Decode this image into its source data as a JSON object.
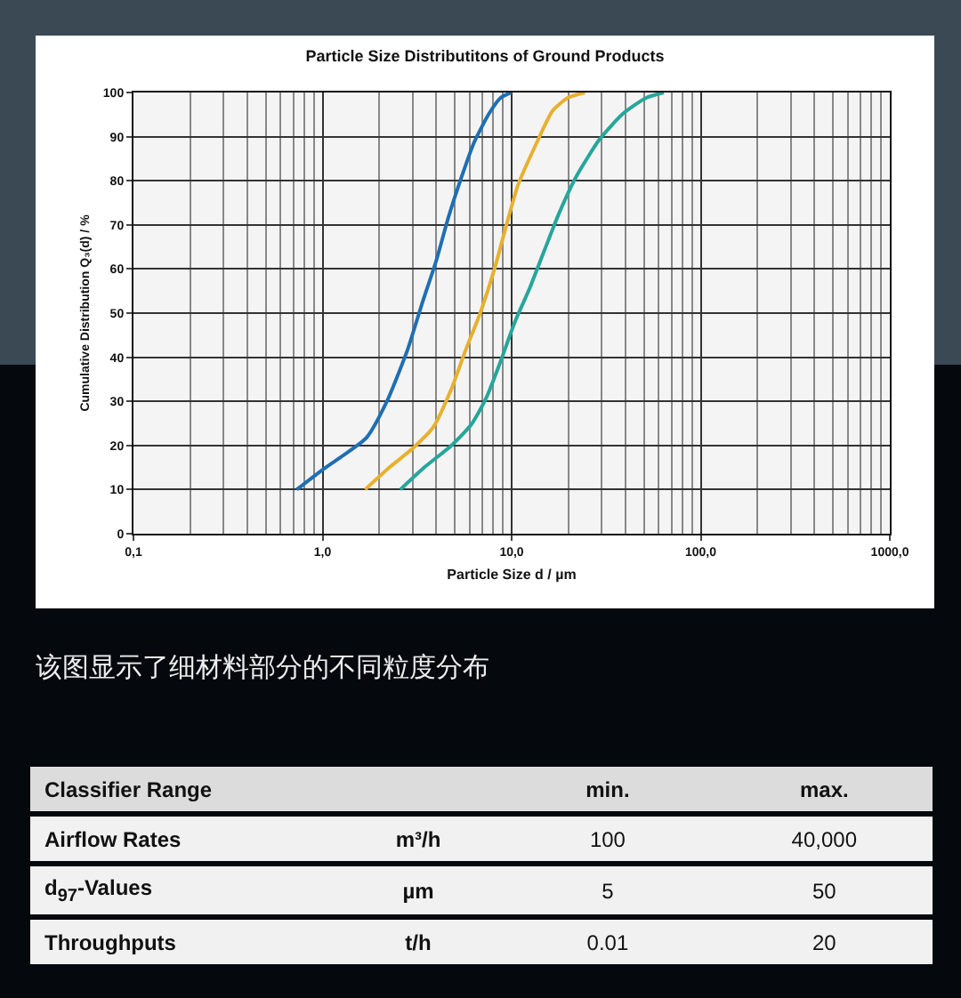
{
  "chart_data": [
    {
      "type": "line",
      "title": "Particle Size Distributitons of Ground Products",
      "xlabel": "Particle Size d / µm",
      "ylabel": "Cumulative Distribution Q₃(d) / %",
      "log": "x",
      "xlim": [
        0.1,
        1000
      ],
      "xticks": [
        {
          "value": 0.1,
          "label": "0,1"
        },
        {
          "value": 1,
          "label": "1,0"
        },
        {
          "value": 10,
          "label": "10,0"
        },
        {
          "value": 100,
          "label": "100,0"
        },
        {
          "value": 1000,
          "label": "1000,0"
        }
      ],
      "ylim": [
        0,
        100
      ],
      "yticks": [
        0,
        10,
        20,
        30,
        40,
        50,
        60,
        70,
        80,
        90,
        100
      ],
      "grid": true,
      "marker": "none",
      "line_style": "solid",
      "series": [
        {
          "color": "#1f6fb2",
          "x": [
            0.73,
            1.0,
            1.71,
            2.19,
            2.81,
            3.35,
            4.0,
            4.6,
            5.32,
            6.35,
            7.59,
            8.74,
            10
          ],
          "values": [
            10,
            14.5,
            21.8,
            30,
            41.6,
            52,
            62,
            71.3,
            79.7,
            88.8,
            95.2,
            98.8,
            100
          ]
        },
        {
          "color": "#e8b030",
          "x": [
            1.68,
            2.27,
            3.01,
            3.86,
            4.78,
            5.71,
            6.82,
            8.15,
            9.39,
            10.8,
            13.4,
            16.5,
            19.8,
            24.4
          ],
          "values": [
            10,
            15.1,
            19.4,
            24.2,
            32.6,
            41.6,
            50,
            60.3,
            70,
            79,
            88.1,
            95.9,
            98.8,
            100
          ]
        },
        {
          "color": "#26a69a",
          "x": [
            2.58,
            3.47,
            4.78,
            6.13,
            7.31,
            8.73,
            10.4,
            12.5,
            14.9,
            17.8,
            22.0,
            29.2,
            38.8,
            51.5,
            63.7
          ],
          "values": [
            10,
            15.1,
            19.9,
            24.8,
            30.6,
            39,
            48,
            55.8,
            64.2,
            72.6,
            81,
            89.4,
            95.2,
            98.8,
            100
          ]
        }
      ],
      "annotations": [
        "该图显示了细材料部分的不同粒度分布"
      ]
    },
    {
      "type": "other",
      "annotations": [
        "Classifier Range",
        "min.",
        "max.",
        "Airflow Rates",
        "m³/h",
        "100",
        "40,000",
        "d$_{97}$-Values",
        "µm",
        "5",
        "50",
        "Throughputs",
        "t/h",
        "0.01",
        "20"
      ]
    }
  ]
}
